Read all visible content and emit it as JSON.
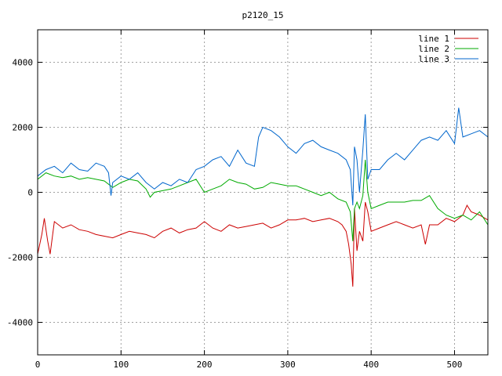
{
  "chart_data": {
    "type": "line",
    "title": "p2120_15",
    "xlabel": "",
    "ylabel": "",
    "xlim": [
      0,
      540
    ],
    "ylim": [
      -5000,
      5000
    ],
    "x_ticks": [
      0,
      100,
      200,
      300,
      400,
      500
    ],
    "y_ticks": [
      -4000,
      -2000,
      0,
      2000,
      4000
    ],
    "grid": true,
    "legend_position": "top-right",
    "series": [
      {
        "name": "line 1",
        "color": "#cc0000",
        "x": [
          0,
          5,
          8,
          12,
          15,
          20,
          30,
          40,
          50,
          60,
          70,
          80,
          90,
          100,
          110,
          120,
          130,
          140,
          150,
          160,
          170,
          180,
          190,
          200,
          210,
          220,
          230,
          240,
          250,
          260,
          270,
          280,
          290,
          300,
          310,
          320,
          330,
          340,
          350,
          360,
          365,
          370,
          373,
          376,
          378,
          380,
          383,
          386,
          390,
          393,
          396,
          400,
          410,
          420,
          430,
          440,
          450,
          460,
          465,
          470,
          480,
          490,
          500,
          510,
          515,
          520,
          530,
          540
        ],
        "y": [
          -1900,
          -1300,
          -800,
          -1500,
          -1900,
          -900,
          -1100,
          -1000,
          -1150,
          -1200,
          -1300,
          -1350,
          -1400,
          -1300,
          -1200,
          -1250,
          -1300,
          -1400,
          -1200,
          -1100,
          -1250,
          -1150,
          -1100,
          -900,
          -1100,
          -1200,
          -1000,
          -1100,
          -1050,
          -1000,
          -950,
          -1100,
          -1000,
          -850,
          -850,
          -800,
          -900,
          -850,
          -800,
          -900,
          -1000,
          -1200,
          -1600,
          -2200,
          -2900,
          -500,
          -1800,
          -1200,
          -1500,
          -300,
          -600,
          -1200,
          -1100,
          -1000,
          -900,
          -1000,
          -1100,
          -1000,
          -1600,
          -1000,
          -1000,
          -800,
          -900,
          -700,
          -400,
          -600,
          -700,
          -850
        ]
      },
      {
        "name": "line 2",
        "color": "#00aa00",
        "x": [
          0,
          10,
          20,
          30,
          40,
          50,
          60,
          70,
          80,
          90,
          100,
          110,
          120,
          130,
          135,
          140,
          150,
          160,
          170,
          180,
          190,
          200,
          210,
          220,
          230,
          240,
          250,
          260,
          270,
          280,
          290,
          300,
          310,
          320,
          330,
          340,
          350,
          360,
          370,
          375,
          378,
          380,
          383,
          386,
          390,
          393,
          396,
          400,
          410,
          420,
          430,
          440,
          450,
          460,
          470,
          480,
          490,
          500,
          510,
          520,
          530,
          540
        ],
        "y": [
          400,
          600,
          500,
          450,
          500,
          400,
          450,
          400,
          350,
          150,
          300,
          400,
          350,
          100,
          -150,
          0,
          50,
          100,
          200,
          300,
          400,
          0,
          100,
          200,
          400,
          300,
          250,
          100,
          150,
          300,
          250,
          200,
          200,
          100,
          0,
          -100,
          0,
          -200,
          -300,
          -600,
          -1500,
          -500,
          -300,
          -500,
          -100,
          1000,
          0,
          -500,
          -400,
          -300,
          -300,
          -300,
          -250,
          -250,
          -100,
          -500,
          -700,
          -800,
          -700,
          -850,
          -600,
          -1000
        ]
      },
      {
        "name": "line 3",
        "color": "#0066cc",
        "x": [
          0,
          10,
          20,
          30,
          40,
          50,
          60,
          70,
          80,
          85,
          88,
          90,
          100,
          110,
          120,
          130,
          140,
          150,
          160,
          170,
          180,
          190,
          200,
          210,
          220,
          230,
          240,
          250,
          260,
          265,
          270,
          280,
          290,
          300,
          310,
          320,
          330,
          340,
          350,
          360,
          370,
          375,
          378,
          380,
          383,
          386,
          390,
          393,
          396,
          400,
          410,
          420,
          430,
          440,
          450,
          460,
          470,
          480,
          490,
          500,
          505,
          510,
          520,
          530,
          540
        ],
        "y": [
          500,
          700,
          800,
          600,
          900,
          700,
          650,
          900,
          800,
          600,
          -100,
          300,
          500,
          400,
          600,
          300,
          100,
          300,
          200,
          400,
          300,
          700,
          800,
          1000,
          1100,
          800,
          1300,
          900,
          800,
          1700,
          2000,
          1900,
          1700,
          1400,
          1200,
          1500,
          1600,
          1400,
          1300,
          1200,
          1000,
          700,
          -400,
          1400,
          1000,
          0,
          1300,
          2400,
          400,
          700,
          700,
          1000,
          1200,
          1000,
          1300,
          1600,
          1700,
          1600,
          1900,
          1500,
          2600,
          1700,
          1800,
          1900,
          1700
        ]
      }
    ]
  }
}
